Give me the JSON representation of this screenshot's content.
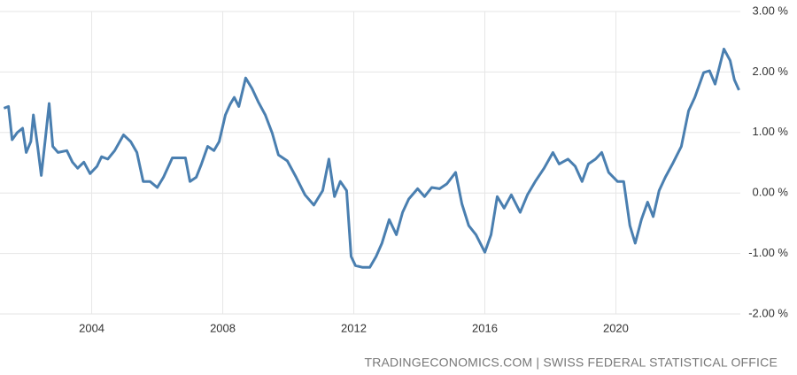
{
  "chart_data": {
    "type": "line",
    "source": "TRADINGECONOMICS.COM | SWISS FEDERAL STATISTICAL OFFICE",
    "x": [
      2001.32,
      2001.46,
      2001.57,
      2001.73,
      2001.89,
      2002.0,
      2002.14,
      2002.22,
      2002.35,
      2002.46,
      2002.59,
      2002.7,
      2002.81,
      2002.97,
      2003.24,
      2003.41,
      2003.57,
      2003.76,
      2003.95,
      2004.16,
      2004.3,
      2004.49,
      2004.7,
      2004.97,
      2005.19,
      2005.38,
      2005.57,
      2005.78,
      2006.0,
      2006.19,
      2006.46,
      2006.86,
      2007.0,
      2007.19,
      2007.35,
      2007.54,
      2007.73,
      2007.89,
      2008.08,
      2008.22,
      2008.35,
      2008.49,
      2008.7,
      2008.89,
      2009.08,
      2009.3,
      2009.51,
      2009.7,
      2009.97,
      2010.24,
      2010.51,
      2010.78,
      2011.05,
      2011.24,
      2011.41,
      2011.59,
      2011.78,
      2011.92,
      2012.05,
      2012.27,
      2012.49,
      2012.68,
      2012.86,
      2013.08,
      2013.3,
      2013.49,
      2013.68,
      2013.95,
      2014.16,
      2014.38,
      2014.62,
      2014.84,
      2015.11,
      2015.3,
      2015.51,
      2015.73,
      2016.0,
      2016.19,
      2016.38,
      2016.59,
      2016.81,
      2017.08,
      2017.3,
      2017.54,
      2017.81,
      2018.08,
      2018.27,
      2018.54,
      2018.76,
      2018.97,
      2019.16,
      2019.38,
      2019.57,
      2019.78,
      2020.05,
      2020.24,
      2020.43,
      2020.59,
      2020.78,
      2020.97,
      2021.14,
      2021.32,
      2021.51,
      2021.73,
      2022.0,
      2022.22,
      2022.41,
      2022.68,
      2022.86,
      2023.03,
      2023.3,
      2023.49,
      2023.62,
      2023.76
    ],
    "series": [
      {
        "color": "#4a7fb0",
        "values": [
          1.4,
          1.43,
          0.88,
          1.0,
          1.07,
          0.67,
          0.85,
          1.29,
          0.77,
          0.29,
          0.92,
          1.48,
          0.77,
          0.67,
          0.7,
          0.51,
          0.41,
          0.51,
          0.32,
          0.44,
          0.6,
          0.56,
          0.7,
          0.96,
          0.85,
          0.67,
          0.19,
          0.19,
          0.09,
          0.26,
          0.58,
          0.58,
          0.19,
          0.26,
          0.48,
          0.77,
          0.7,
          0.85,
          1.29,
          1.46,
          1.58,
          1.43,
          1.9,
          1.73,
          1.51,
          1.29,
          0.99,
          0.63,
          0.53,
          0.26,
          -0.03,
          -0.2,
          0.04,
          0.56,
          -0.06,
          0.19,
          0.04,
          -1.05,
          -1.2,
          -1.23,
          -1.23,
          -1.05,
          -0.83,
          -0.44,
          -0.69,
          -0.32,
          -0.1,
          0.07,
          -0.06,
          0.09,
          0.07,
          0.15,
          0.34,
          -0.18,
          -0.54,
          -0.69,
          -0.98,
          -0.69,
          -0.06,
          -0.25,
          -0.03,
          -0.32,
          -0.03,
          0.19,
          0.41,
          0.67,
          0.48,
          0.56,
          0.44,
          0.19,
          0.48,
          0.56,
          0.67,
          0.34,
          0.19,
          0.19,
          -0.54,
          -0.83,
          -0.44,
          -0.15,
          -0.39,
          0.04,
          0.26,
          0.48,
          0.77,
          1.36,
          1.58,
          1.99,
          2.02,
          1.8,
          2.38,
          2.19,
          1.87,
          1.7
        ]
      }
    ],
    "xlim": [
      2001.2,
      2023.8
    ],
    "xticks": [
      2004,
      2008,
      2012,
      2016,
      2020
    ],
    "ylim": [
      -2,
      3
    ],
    "yticks": [
      {
        "value": -2,
        "label": "-2.00 %"
      },
      {
        "value": -1,
        "label": "-1.00 %"
      },
      {
        "value": 0,
        "label": "0.00 %"
      },
      {
        "value": 1,
        "label": "1.00 %"
      },
      {
        "value": 2,
        "label": "2.00 %"
      },
      {
        "value": 3,
        "label": "3.00 %"
      }
    ],
    "grid": true
  }
}
